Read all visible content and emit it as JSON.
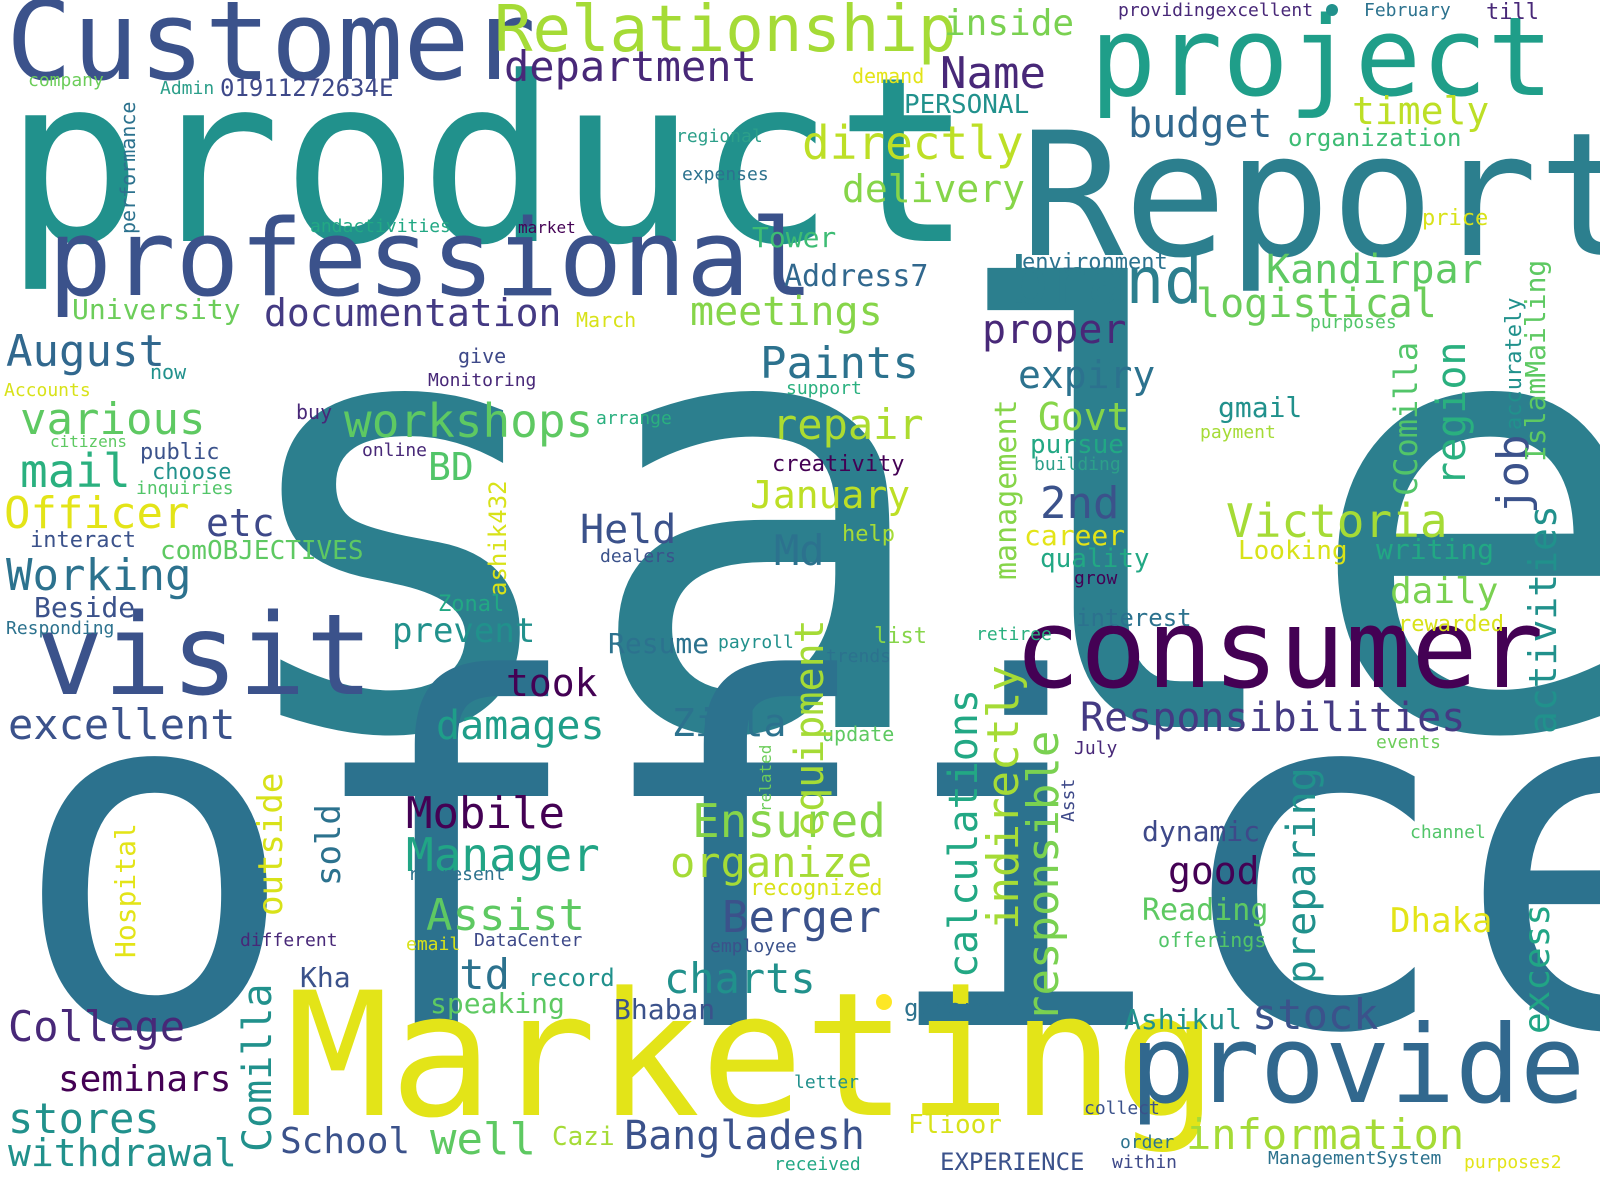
{
  "colors": {
    "background": "#ffffff",
    "palette": [
      "#440154",
      "#3b528b",
      "#2c728e",
      "#21918c",
      "#27ad81",
      "#5ec962",
      "#aadc32",
      "#fde725"
    ]
  },
  "words": [
    {
      "text": "sale",
      "color": "#2c7f8e"
    },
    {
      "text": "office",
      "color": "#2c728e"
    },
    {
      "text": "product",
      "color": "#21918c"
    },
    {
      "text": "Report",
      "color": "#2c7f8e"
    },
    {
      "text": "Marketing",
      "color": "#e3e418"
    },
    {
      "text": "Customer",
      "color": "#3b528b"
    },
    {
      "text": "project",
      "color": "#1f9e89"
    },
    {
      "text": "professional",
      "color": "#3b528b"
    },
    {
      "text": "consumer",
      "color": "#440154"
    },
    {
      "text": "provide",
      "color": "#31688e"
    },
    {
      "text": "visit",
      "color": "#3b528b"
    },
    {
      "text": "Relationship",
      "color": "#a5db36"
    },
    {
      "text": "brand",
      "color": "#2c7f8e"
    },
    {
      "text": "department",
      "color": "#482878"
    },
    {
      "text": "Name",
      "color": "#482878"
    },
    {
      "text": "inside",
      "color": "#7ad151"
    },
    {
      "text": "budget",
      "color": "#31688e"
    },
    {
      "text": "timely",
      "color": "#bddf26"
    },
    {
      "text": "directly",
      "color": "#bddf26"
    },
    {
      "text": "delivery",
      "color": "#86d549"
    },
    {
      "text": "Kandirpar",
      "color": "#5ec962"
    },
    {
      "text": "logistical",
      "color": "#6ccd5a"
    },
    {
      "text": "documentation",
      "color": "#443a83"
    },
    {
      "text": "meetings",
      "color": "#86d549"
    },
    {
      "text": "proper",
      "color": "#482878"
    },
    {
      "text": "Paints",
      "color": "#2c728e"
    },
    {
      "text": "expiry",
      "color": "#2c728e"
    },
    {
      "text": "repair",
      "color": "#addc30"
    },
    {
      "text": "workshops",
      "color": "#5ec962"
    },
    {
      "text": "various",
      "color": "#5ec962"
    },
    {
      "text": "August",
      "color": "#31688e"
    },
    {
      "text": "mail",
      "color": "#2ab07f"
    },
    {
      "text": "Officer",
      "color": "#e3e418"
    },
    {
      "text": "etc",
      "color": "#3e4989"
    },
    {
      "text": "Working",
      "color": "#2c728e"
    },
    {
      "text": "BD",
      "color": "#52c569"
    },
    {
      "text": "January",
      "color": "#bddf26"
    },
    {
      "text": "Govt",
      "color": "#86d549"
    },
    {
      "text": "2nd",
      "color": "#3b528b"
    },
    {
      "text": "Victoria",
      "color": "#a5db36"
    },
    {
      "text": "Held",
      "color": "#3b528b"
    },
    {
      "text": "Md",
      "color": "#2c728e"
    },
    {
      "text": "Responsibilities",
      "color": "#443a83"
    },
    {
      "text": "excellent",
      "color": "#3b528b"
    },
    {
      "text": "took",
      "color": "#440154"
    },
    {
      "text": "damages",
      "color": "#1f9e89"
    },
    {
      "text": "Zilla",
      "color": "#2c728e"
    },
    {
      "text": "Mobile",
      "color": "#440154"
    },
    {
      "text": "Ensured",
      "color": "#86d549"
    },
    {
      "text": "Manager",
      "color": "#21a585"
    },
    {
      "text": "organize",
      "color": "#a5db36"
    },
    {
      "text": "Berger",
      "color": "#3b528b"
    },
    {
      "text": "Assist",
      "color": "#5ec962"
    },
    {
      "text": "Ltd",
      "color": "#2c728e"
    },
    {
      "text": "charts",
      "color": "#21918c"
    },
    {
      "text": "College",
      "color": "#482878"
    },
    {
      "text": "seminars",
      "color": "#440154"
    },
    {
      "text": "stores",
      "color": "#21918c"
    },
    {
      "text": "withdrawal",
      "color": "#21918c"
    },
    {
      "text": "School",
      "color": "#3b528b"
    },
    {
      "text": "well",
      "color": "#5ec962"
    },
    {
      "text": "Bangladesh",
      "color": "#3b528b"
    },
    {
      "text": "information",
      "color": "#a5db36"
    },
    {
      "text": "stock",
      "color": "#3b528b"
    },
    {
      "text": "good",
      "color": "#440154"
    },
    {
      "text": "dynamic",
      "color": "#3e4989"
    },
    {
      "text": "Reading",
      "color": "#5ec962"
    },
    {
      "text": "Dhaka",
      "color": "#e3e418"
    },
    {
      "text": "Ashikul",
      "color": "#21918c"
    },
    {
      "text": "prevent",
      "color": "#21918c"
    },
    {
      "text": "Beside",
      "color": "#3b528b"
    },
    {
      "text": "Address7",
      "color": "#31688e"
    },
    {
      "text": "Tower",
      "color": "#3dbc74"
    },
    {
      "text": "University",
      "color": "#6ccd5a"
    },
    {
      "text": "daily",
      "color": "#7ad151"
    },
    {
      "text": "writing",
      "color": "#22a884"
    },
    {
      "text": "Looking",
      "color": "#d8e219"
    },
    {
      "text": "career",
      "color": "#e3e418"
    },
    {
      "text": "quality",
      "color": "#22a884"
    },
    {
      "text": "pursue",
      "color": "#22a884"
    },
    {
      "text": "gmail",
      "color": "#21918c"
    },
    {
      "text": "Resume",
      "color": "#2c728e"
    },
    {
      "text": "speaking",
      "color": "#5ec962"
    },
    {
      "text": "Bhaban",
      "color": "#3b528b"
    },
    {
      "text": "Kha",
      "color": "#3b528b"
    },
    {
      "text": "Cazi",
      "color": "#a5db36"
    },
    {
      "text": "Flioor",
      "color": "#d8e219"
    },
    {
      "text": "EXPERIENCE",
      "color": "#3b528b"
    },
    {
      "text": "interest",
      "color": "#2c728e"
    },
    {
      "text": "rewarded",
      "color": "#d8e219"
    },
    {
      "text": "creativity",
      "color": "#440154"
    },
    {
      "text": "PERSONAL",
      "color": "#21918c"
    },
    {
      "text": "01911272634E",
      "color": "#3e4989"
    },
    {
      "text": "Admin",
      "color": "#2c9f8a"
    },
    {
      "text": "company",
      "color": "#6ccd5a"
    },
    {
      "text": "demand",
      "color": "#e3e418"
    },
    {
      "text": "organization",
      "color": "#3dbc74"
    },
    {
      "text": "regional",
      "color": "#2c9f8a"
    },
    {
      "text": "expenses",
      "color": "#2c728e"
    },
    {
      "text": "andactivities",
      "color": "#22a884"
    },
    {
      "text": "market",
      "color": "#440154"
    },
    {
      "text": "price",
      "color": "#d8e219"
    },
    {
      "text": "environment",
      "color": "#2c728e"
    },
    {
      "text": "purposes",
      "color": "#52c569"
    },
    {
      "text": "March",
      "color": "#d8e219"
    },
    {
      "text": "now",
      "color": "#21918c"
    },
    {
      "text": "give",
      "color": "#3e4989"
    },
    {
      "text": "Monitoring",
      "color": "#482878"
    },
    {
      "text": "support",
      "color": "#2ab07f"
    },
    {
      "text": "Accounts",
      "color": "#d8e219"
    },
    {
      "text": "buy",
      "color": "#482878"
    },
    {
      "text": "arrange",
      "color": "#2ab07f"
    },
    {
      "text": "payment",
      "color": "#a5db36"
    },
    {
      "text": "building",
      "color": "#2c9f8a"
    },
    {
      "text": "citizens",
      "color": "#5ec962"
    },
    {
      "text": "public",
      "color": "#3b528b"
    },
    {
      "text": "online",
      "color": "#482878"
    },
    {
      "text": "choose",
      "color": "#21918c"
    },
    {
      "text": "inquiries",
      "color": "#52c569"
    },
    {
      "text": "help",
      "color": "#a5db36"
    },
    {
      "text": "interact",
      "color": "#3b528b"
    },
    {
      "text": "comOBJECTIVES",
      "color": "#5ec962"
    },
    {
      "text": "dealers",
      "color": "#3b528b"
    },
    {
      "text": "grow",
      "color": "#440154"
    },
    {
      "text": "Responding",
      "color": "#2c728e"
    },
    {
      "text": "Zonal",
      "color": "#22a884"
    },
    {
      "text": "list",
      "color": "#86d549"
    },
    {
      "text": "payroll",
      "color": "#21918c"
    },
    {
      "text": "retiree",
      "color": "#2ab07f"
    },
    {
      "text": "trends",
      "color": "#2c728e"
    },
    {
      "text": "update",
      "color": "#5ec962"
    },
    {
      "text": "July",
      "color": "#482878"
    },
    {
      "text": "events",
      "color": "#6ccd5a"
    },
    {
      "text": "channel",
      "color": "#52c569"
    },
    {
      "text": "represent",
      "color": "#2c728e"
    },
    {
      "text": "recognized",
      "color": "#d8e219"
    },
    {
      "text": "different",
      "color": "#482878"
    },
    {
      "text": "email",
      "color": "#d8e219"
    },
    {
      "text": "DataCenter",
      "color": "#3e4989"
    },
    {
      "text": "employee",
      "color": "#3b528b"
    },
    {
      "text": "offerings",
      "color": "#52c569"
    },
    {
      "text": "record",
      "color": "#21918c"
    },
    {
      "text": "generate",
      "color": "#2c728e"
    },
    {
      "text": "letter",
      "color": "#21918c"
    },
    {
      "text": "collect",
      "color": "#3b528b"
    },
    {
      "text": "order",
      "color": "#2c728e"
    },
    {
      "text": "within",
      "color": "#3e4989"
    },
    {
      "text": "received",
      "color": "#22a884"
    },
    {
      "text": "ManagementSystem",
      "color": "#2c728e"
    },
    {
      "text": "purposes2",
      "color": "#e3e418"
    },
    {
      "text": "providingexcellent",
      "color": "#482878"
    },
    {
      "text": "February",
      "color": "#2c728e"
    },
    {
      "text": "till",
      "color": "#482878"
    },
    {
      "text": "performance",
      "color": "#2c728e"
    },
    {
      "text": "Hospital",
      "color": "#e3e418"
    },
    {
      "text": "outside",
      "color": "#d8e219"
    },
    {
      "text": "sold",
      "color": "#2c728e"
    },
    {
      "text": "Comilla",
      "color": "#21918c"
    },
    {
      "text": "ashik432",
      "color": "#d8e219"
    },
    {
      "text": "equipment",
      "color": "#a5db36"
    },
    {
      "text": "calculations",
      "color": "#22a884"
    },
    {
      "text": "indirectly",
      "color": "#a5db36"
    },
    {
      "text": "responsible",
      "color": "#7ad151"
    },
    {
      "text": "management",
      "color": "#86d549"
    },
    {
      "text": "preparing",
      "color": "#21918c"
    },
    {
      "text": "CComilla",
      "color": "#52c569"
    },
    {
      "text": "region",
      "color": "#2ab07f"
    },
    {
      "text": "job",
      "color": "#3b528b"
    },
    {
      "text": "accurately",
      "color": "#21918c"
    },
    {
      "text": "IslamMailing",
      "color": "#5ec962"
    },
    {
      "text": "activities",
      "color": "#21918c"
    },
    {
      "text": "excess",
      "color": "#21a585"
    },
    {
      "text": "related",
      "color": "#6ccd5a"
    },
    {
      "text": "Asst",
      "color": "#3e4989"
    }
  ],
  "dots": [
    {
      "color": "#21918c"
    },
    {
      "color": "#fde725"
    }
  ]
}
